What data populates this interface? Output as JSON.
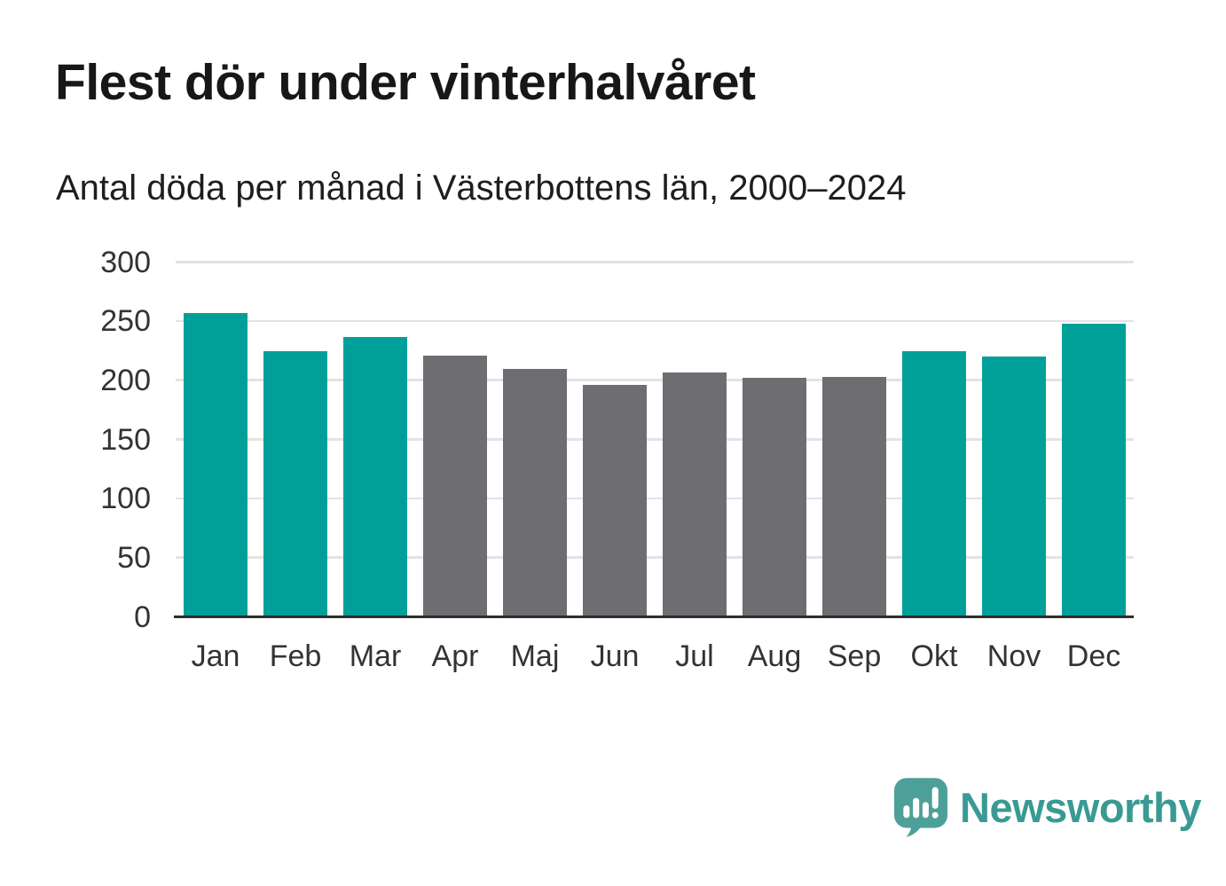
{
  "title": "Flest dör under vinterhalvåret",
  "subtitle": "Antal döda per månad i Västerbottens län, 2000–2024",
  "branding": {
    "name": "Newsworthy",
    "mark_color": "#4da098",
    "wordmark_color": "#3a9a93",
    "mark_bar_color": "#ffffff"
  },
  "chart_data": {
    "type": "bar",
    "title": "Flest dör under vinterhalvåret",
    "subtitle": "Antal döda per månad i Västerbottens län, 2000–2024",
    "categories": [
      "Jan",
      "Feb",
      "Mar",
      "Apr",
      "Maj",
      "Jun",
      "Jul",
      "Aug",
      "Sep",
      "Okt",
      "Nov",
      "Dec"
    ],
    "values": [
      257,
      225,
      237,
      221,
      210,
      196,
      207,
      202,
      203,
      225,
      220,
      248
    ],
    "bar_colors": [
      "#00a099",
      "#00a099",
      "#00a099",
      "#6e6d72",
      "#6e6d72",
      "#6e6d72",
      "#6e6d72",
      "#6e6d72",
      "#6e6d72",
      "#00a099",
      "#00a099",
      "#00a099"
    ],
    "winter_color": "#00a099",
    "summer_color": "#6e6d72",
    "yticks": [
      0,
      50,
      100,
      150,
      200,
      250,
      300
    ],
    "ylim": [
      0,
      300
    ],
    "xlabel": "",
    "ylabel": "",
    "grid": "horizontal",
    "legend": "none",
    "gridline_color": "#e3e3e3",
    "axis_color": "#2e2e2e",
    "tick_label_color": "#333333"
  }
}
